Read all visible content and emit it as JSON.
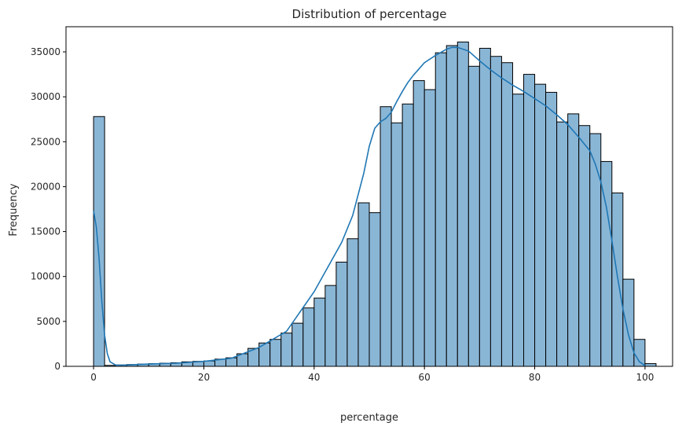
{
  "chart_data": {
    "type": "bar",
    "title": "Distribution of percentage",
    "xlabel": "percentage",
    "ylabel": "Frequency",
    "xlim": [
      -5,
      105
    ],
    "ylim": [
      0,
      37800
    ],
    "xticks": [
      0,
      20,
      40,
      60,
      80,
      100
    ],
    "yticks": [
      0,
      5000,
      10000,
      15000,
      20000,
      25000,
      30000,
      35000
    ],
    "bin_width": 2,
    "bin_start": 0,
    "grid": false,
    "legend": "none",
    "colors": {
      "bar_fill": "#8ab6d6",
      "bar_edge": "#000000",
      "kde_line": "#1f77b4",
      "axis": "#000000",
      "text": "#262626"
    },
    "values": [
      27800,
      100,
      150,
      200,
      250,
      300,
      350,
      400,
      500,
      550,
      600,
      800,
      950,
      1400,
      2000,
      2600,
      3000,
      3700,
      4800,
      6500,
      7600,
      9000,
      11600,
      14200,
      18200,
      17100,
      28900,
      27100,
      29200,
      31800,
      30800,
      34900,
      35700,
      36100,
      33400,
      35400,
      34500,
      33800,
      30300,
      32500,
      31400,
      30500,
      27200,
      28100,
      26800,
      25900,
      22800,
      19300,
      9700,
      3000,
      300
    ],
    "kde": {
      "x": [
        0,
        0.5,
        1,
        1.5,
        2,
        2.5,
        3,
        4,
        5,
        6,
        8,
        10,
        15,
        20,
        25,
        30,
        35,
        40,
        45,
        47,
        49,
        50,
        51,
        52,
        53,
        54,
        55,
        56,
        57,
        58,
        59,
        60,
        62,
        64,
        65,
        66,
        68,
        70,
        72,
        74,
        76,
        78,
        80,
        82,
        84,
        86,
        88,
        90,
        91,
        92,
        93,
        94,
        95,
        96,
        97,
        98,
        99,
        100
      ],
      "y": [
        17300,
        15500,
        12000,
        7200,
        3500,
        1400,
        500,
        150,
        120,
        150,
        200,
        250,
        350,
        550,
        900,
        2100,
        3900,
        8300,
        13800,
        16800,
        21500,
        24500,
        26500,
        27200,
        27600,
        28300,
        29500,
        30600,
        31600,
        32400,
        33100,
        33800,
        34600,
        35300,
        35500,
        35500,
        35100,
        34000,
        33000,
        32100,
        31300,
        30600,
        29800,
        29000,
        28000,
        26900,
        25500,
        24000,
        22500,
        20500,
        17700,
        14000,
        10000,
        6400,
        3500,
        1500,
        500,
        100
      ]
    }
  }
}
